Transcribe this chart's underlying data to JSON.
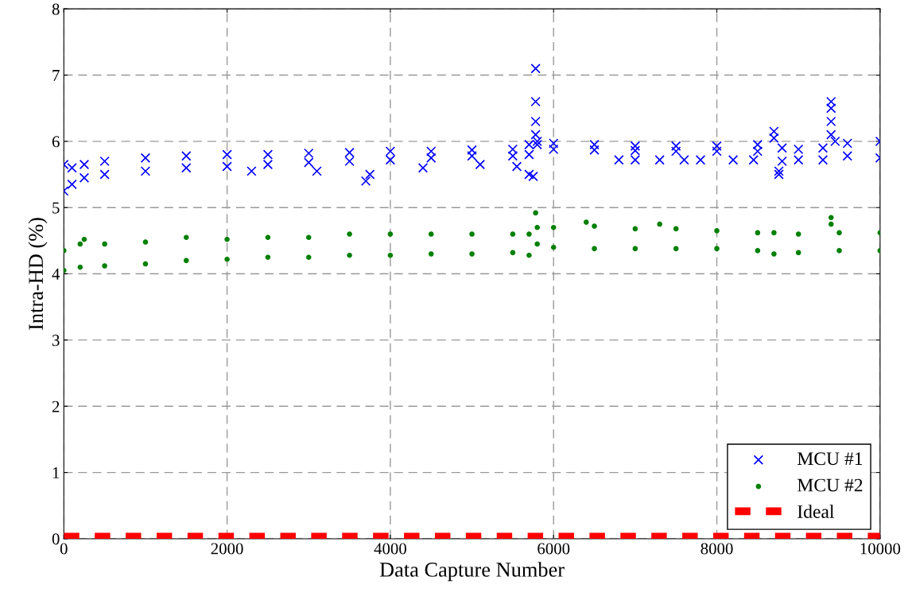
{
  "chart_data": {
    "type": "scatter",
    "xlabel": "Data Capture Number",
    "ylabel": "Intra-HD (%)",
    "xlim": [
      0,
      10000
    ],
    "xticks": [
      0,
      2000,
      4000,
      6000,
      8000,
      10000
    ],
    "ylim": [
      0,
      8
    ],
    "yticks": [
      0,
      1,
      2,
      3,
      4,
      5,
      6,
      7,
      8
    ],
    "grid": true,
    "legend": "bottom right",
    "series": [
      {
        "name": "MCU #1",
        "color": "#0000ff",
        "marker": "cross",
        "x": [
          0,
          0,
          100,
          100,
          250,
          250,
          500,
          500,
          1000,
          1000,
          1500,
          1500,
          2000,
          2000,
          2300,
          2500,
          2500,
          3000,
          3000,
          3100,
          3500,
          3500,
          3700,
          3750,
          4000,
          4000,
          4400,
          4500,
          4500,
          5000,
          5000,
          5100,
          5500,
          5500,
          5550,
          5700,
          5700,
          5700,
          5750,
          5780,
          5780,
          5780,
          5780,
          5800,
          5800,
          6000,
          6000,
          6500,
          6500,
          6800,
          7000,
          7000,
          7000,
          7300,
          7500,
          7500,
          7600,
          7800,
          8000,
          8000,
          8200,
          8450,
          8500,
          8500,
          8700,
          8700,
          8760,
          8760,
          8800,
          8800,
          9000,
          9000,
          9300,
          9300,
          9400,
          9400,
          9400,
          9400,
          9450,
          9600,
          9600,
          10000,
          10000
        ],
        "values": [
          5.25,
          5.65,
          5.35,
          5.6,
          5.45,
          5.65,
          5.5,
          5.7,
          5.55,
          5.75,
          5.6,
          5.78,
          5.62,
          5.8,
          5.55,
          5.65,
          5.8,
          5.68,
          5.82,
          5.55,
          5.7,
          5.83,
          5.4,
          5.5,
          5.72,
          5.85,
          5.6,
          5.75,
          5.85,
          5.78,
          5.87,
          5.65,
          5.78,
          5.88,
          5.62,
          5.8,
          5.95,
          5.5,
          5.47,
          7.1,
          6.6,
          6.3,
          6.1,
          6.0,
          5.95,
          5.88,
          5.97,
          5.87,
          5.95,
          5.72,
          5.86,
          5.93,
          5.72,
          5.72,
          5.85,
          5.93,
          5.72,
          5.72,
          5.85,
          5.93,
          5.72,
          5.72,
          5.85,
          5.95,
          6.15,
          6.05,
          5.5,
          5.55,
          5.7,
          5.9,
          5.72,
          5.88,
          5.72,
          5.9,
          6.6,
          6.5,
          6.3,
          6.1,
          6.0,
          5.78,
          5.97,
          5.75,
          6.0
        ]
      },
      {
        "name": "MCU #2",
        "color": "#008000",
        "marker": "circle",
        "x": [
          0,
          0,
          200,
          200,
          250,
          500,
          500,
          1000,
          1000,
          1500,
          1500,
          2000,
          2000,
          2500,
          2500,
          3000,
          3000,
          3500,
          3500,
          4000,
          4000,
          4500,
          4500,
          5000,
          5000,
          5500,
          5500,
          5700,
          5700,
          5780,
          5800,
          5800,
          6000,
          6000,
          6400,
          6500,
          6500,
          7000,
          7000,
          7300,
          7500,
          7500,
          8000,
          8000,
          8500,
          8500,
          8700,
          8700,
          9000,
          9000,
          9400,
          9400,
          9500,
          9500,
          10000,
          10000
        ],
        "values": [
          4.05,
          4.35,
          4.1,
          4.45,
          4.52,
          4.12,
          4.45,
          4.15,
          4.48,
          4.2,
          4.55,
          4.22,
          4.52,
          4.25,
          4.55,
          4.25,
          4.55,
          4.28,
          4.6,
          4.28,
          4.6,
          4.3,
          4.6,
          4.3,
          4.6,
          4.32,
          4.6,
          4.28,
          4.6,
          4.92,
          4.45,
          4.7,
          4.4,
          4.7,
          4.78,
          4.38,
          4.72,
          4.38,
          4.68,
          4.75,
          4.38,
          4.68,
          4.38,
          4.65,
          4.35,
          4.62,
          4.3,
          4.62,
          4.32,
          4.6,
          4.85,
          4.75,
          4.35,
          4.62,
          4.35,
          4.62
        ]
      },
      {
        "name": "Ideal",
        "type": "line",
        "color": "#ff0000",
        "line_style": "dashed",
        "marker": "none",
        "x": [
          0,
          10000
        ],
        "values": [
          0.03,
          0.03
        ]
      }
    ]
  }
}
